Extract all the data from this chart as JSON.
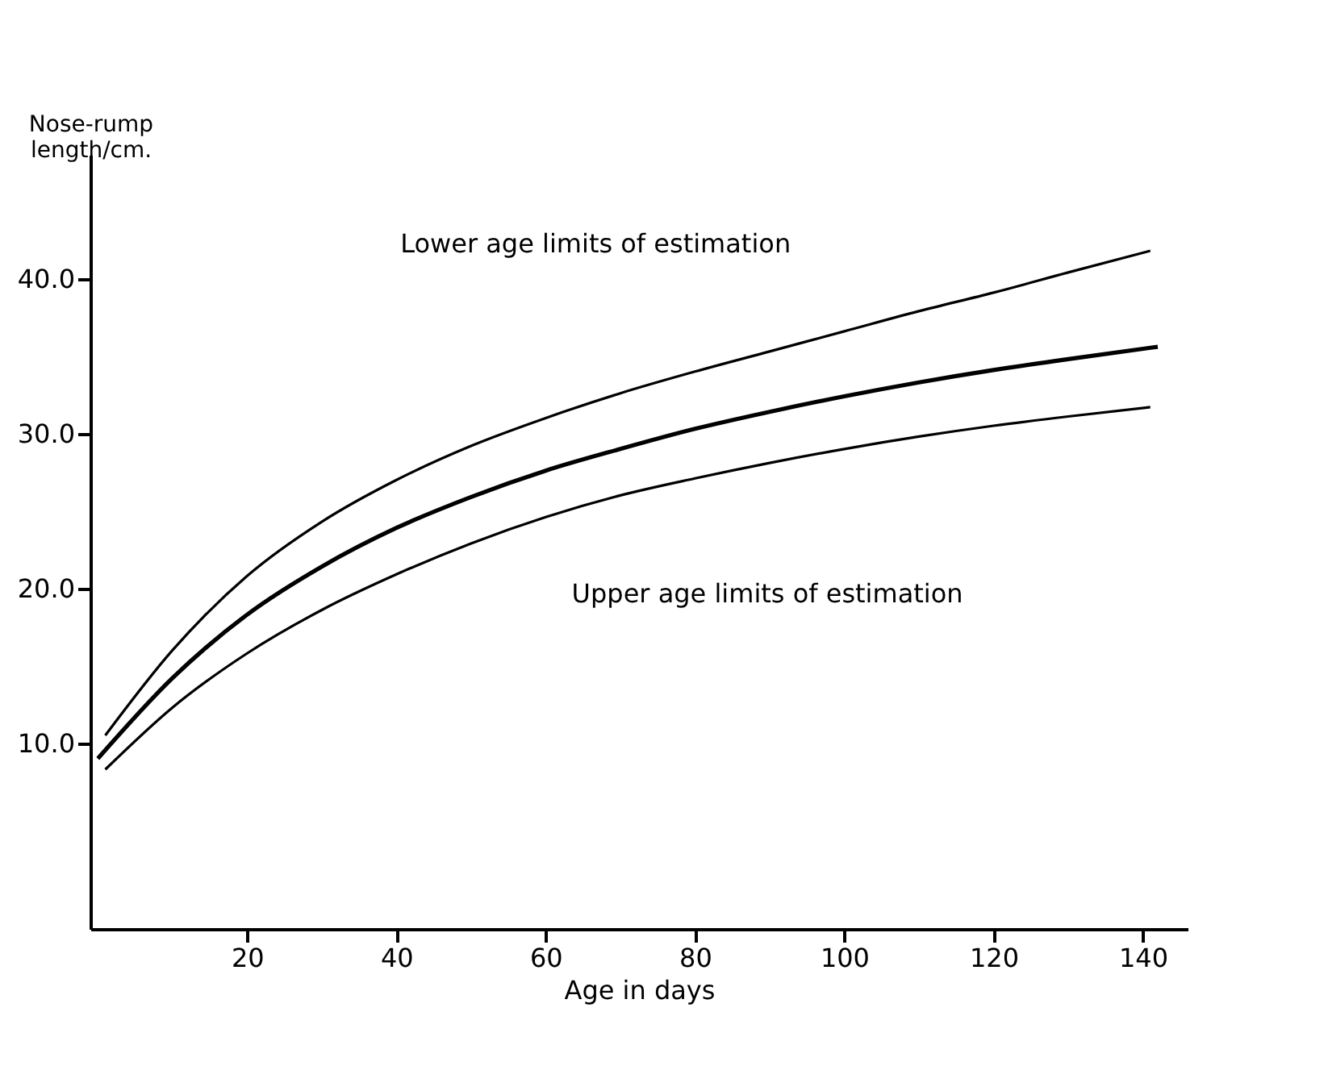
{
  "chart_data": {
    "type": "line",
    "xlabel": "Age in days",
    "ylabel": "Nose-rump length/cm.",
    "xlim": [
      -1,
      146
    ],
    "ylim": [
      -2,
      48
    ],
    "xticks": [
      20,
      40,
      60,
      80,
      100,
      120,
      140
    ],
    "yticks": [
      {
        "value": 10,
        "label": "10.0"
      },
      {
        "value": 20,
        "label": "20.0"
      },
      {
        "value": 30,
        "label": "30.0"
      },
      {
        "value": 40,
        "label": "40.0"
      }
    ],
    "grid": false,
    "marker": "none",
    "line_style": "solid",
    "annotations": [
      {
        "text": "Lower age limits of estimation",
        "x": 95,
        "y": 36.5
      },
      {
        "text": "Upper age limits of estimation",
        "x": 57,
        "y": 24.3
      }
    ],
    "series": [
      {
        "color": "#000000",
        "x": [
          1,
          10,
          20,
          30,
          40,
          50,
          60,
          70,
          80,
          90,
          100,
          110,
          120,
          130,
          141
        ],
        "values": [
          10.5,
          16.0,
          20.8,
          24.3,
          27.0,
          29.2,
          31.0,
          32.6,
          34.0,
          35.3,
          36.6,
          37.9,
          39.1,
          40.4,
          41.8
        ]
      },
      {
        "color": "#000000",
        "x": [
          0,
          10,
          20,
          30,
          40,
          50,
          60,
          70,
          80,
          90,
          100,
          110,
          120,
          130,
          142
        ],
        "values": [
          9.0,
          14.2,
          18.3,
          21.4,
          23.9,
          25.9,
          27.6,
          29.0,
          30.3,
          31.4,
          32.4,
          33.3,
          34.1,
          34.8,
          35.6
        ]
      },
      {
        "color": "#000000",
        "x": [
          1,
          10,
          20,
          30,
          40,
          50,
          60,
          70,
          80,
          90,
          100,
          110,
          120,
          130,
          141
        ],
        "values": [
          8.3,
          12.3,
          15.8,
          18.6,
          20.9,
          22.9,
          24.6,
          26.0,
          27.1,
          28.1,
          29.0,
          29.8,
          30.5,
          31.1,
          31.7
        ]
      }
    ]
  }
}
